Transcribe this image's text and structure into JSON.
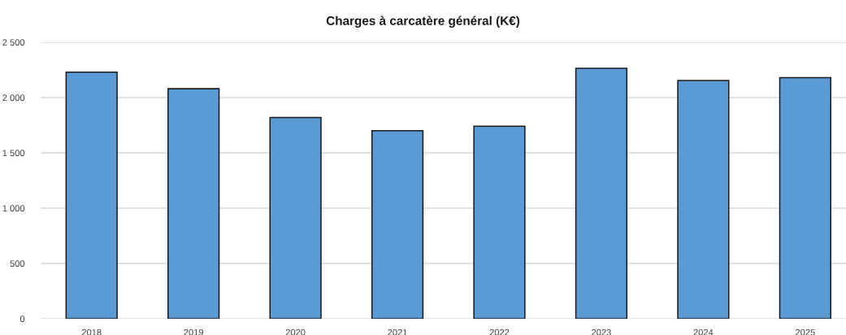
{
  "chart_data": {
    "type": "bar",
    "title": "Charges à carcatère général (K€)",
    "categories": [
      "2018",
      "2019",
      "2020",
      "2021",
      "2022",
      "2023",
      "2024",
      "2025"
    ],
    "values": [
      2230,
      2080,
      1820,
      1700,
      1740,
      2265,
      2155,
      2180
    ],
    "color": "#5b9bd5",
    "ylim": [
      0,
      2500
    ],
    "yticks": [
      0,
      500,
      {
        "value": 1000,
        "label": "1 000"
      },
      {
        "value": 1500,
        "label": "1 500"
      },
      {
        "value": 2000,
        "label": "2 000"
      },
      {
        "value": 2500,
        "label": "2 500"
      }
    ],
    "grid": "y"
  }
}
